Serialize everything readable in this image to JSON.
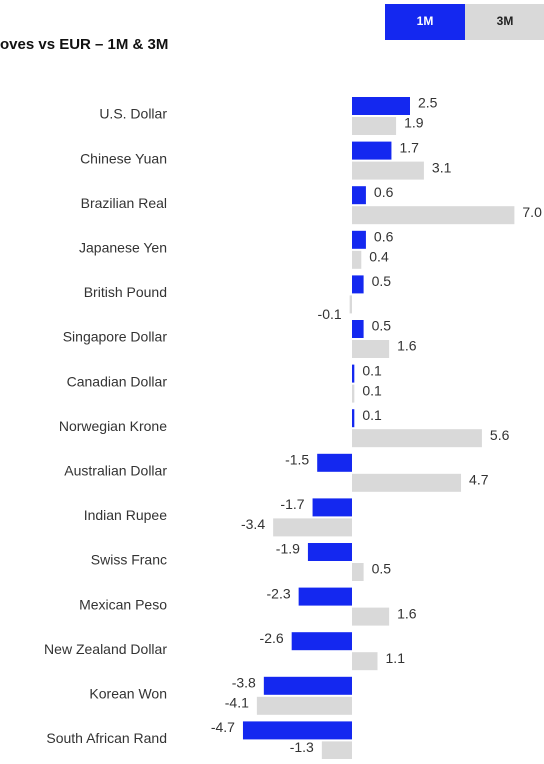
{
  "chart_data": {
    "type": "hbar",
    "title": "oves vs EUR – 1M & 3M",
    "categories": [
      "U.S. Dollar",
      "Chinese Yuan",
      "Brazilian Real",
      "Japanese Yen",
      "British Pound",
      "Singapore Dollar",
      "Canadian Dollar",
      "Norwegian Krone",
      "Australian Dollar",
      "Indian Rupee",
      "Swiss Franc",
      "Mexican Peso",
      "New Zealand Dollar",
      "Korean Won",
      "South African Rand"
    ],
    "series": [
      {
        "name": "1M",
        "color": "#1428f0",
        "values": [
          2.5,
          1.7,
          0.6,
          0.6,
          0.5,
          0.5,
          0.1,
          0.1,
          -1.5,
          -1.7,
          -1.9,
          -2.3,
          -2.6,
          -3.8,
          -4.7
        ],
        "value_labels": [
          "2.5",
          "1.7",
          "0.6",
          "0.6",
          "0.5",
          "0.5",
          "0.1",
          "0.1",
          "-1.5",
          "-1.7",
          "-1.9",
          "-2.3",
          "-2.6",
          "-3.8",
          "-4.7"
        ]
      },
      {
        "name": "3M",
        "color": "#d9d9d9",
        "values": [
          1.9,
          3.1,
          7.0,
          0.4,
          -0.1,
          1.6,
          0.1,
          5.6,
          4.7,
          -3.4,
          0.5,
          1.6,
          1.1,
          -4.1,
          -1.3
        ],
        "value_labels": [
          "1.9",
          "3.1",
          "7.0",
          "0.4",
          "-0.1",
          "1.6",
          "0.1",
          "5.6",
          "4.7",
          "-3.4",
          "0.5",
          "1.6",
          "1.1",
          "-4.1",
          "-1.3"
        ]
      }
    ]
  }
}
